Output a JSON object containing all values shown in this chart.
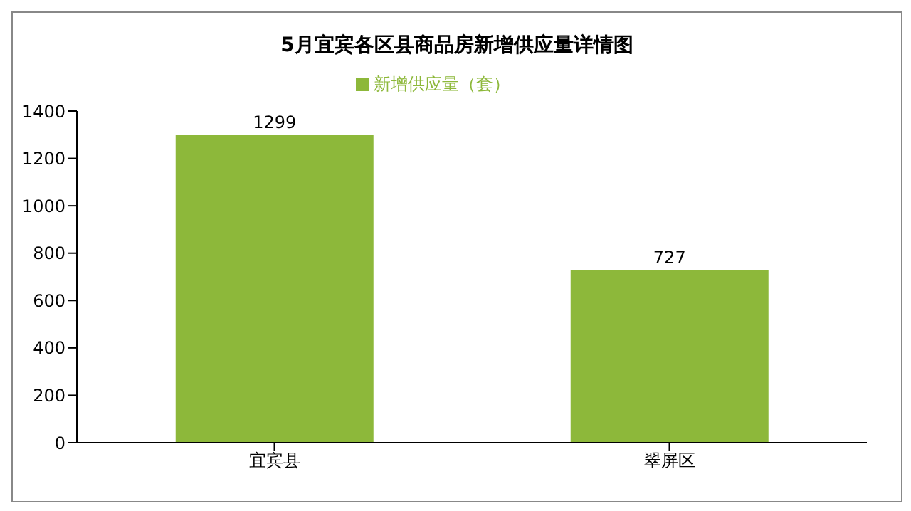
{
  "chart_data": {
    "type": "bar",
    "title": "5月宜宾各区县商品房新增供应量详情图",
    "categories": [
      "宜宾县",
      "翠屏区"
    ],
    "series": [
      {
        "name": "新增供应量（套）",
        "color": "#8db83a",
        "values": [
          1299,
          727
        ]
      }
    ],
    "ylim": [
      0,
      1400
    ],
    "yticks": [
      0,
      200,
      400,
      600,
      800,
      1000,
      1200,
      1400
    ],
    "grid": false,
    "legend": "top",
    "data_labels": true
  }
}
